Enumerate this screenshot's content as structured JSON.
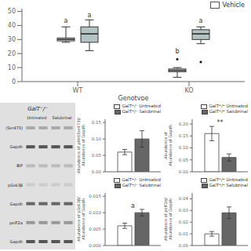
{
  "chart_data": [
    {
      "type": "box",
      "xlabel": "Genotype",
      "categories": [
        "WT",
        "KO"
      ],
      "ylim": [
        0,
        52
      ],
      "yticks": [
        0,
        10,
        20,
        30,
        40,
        50
      ],
      "legend": "upper right",
      "series": [
        {
          "name": "Vehicle",
          "color": "white",
          "values": [
            {
              "median": 30,
              "q1": 29,
              "q3": 31,
              "whislo": 28,
              "whishi": 39
            },
            {
              "median": 8,
              "q1": 7,
              "q3": 9,
              "whislo": 3,
              "whishi": 10
            }
          ],
          "fliers": [
            [],
            [
              16
            ]
          ],
          "annotations": [
            {
              "text": "a",
              "y": 42
            },
            {
              "text": "b",
              "y": 20
            }
          ]
        },
        {
          "color": "#b5c4c2",
          "values": [
            {
              "median": 34,
              "q1": 28,
              "q3": 39,
              "whislo": 22,
              "whishi": 44
            },
            {
              "median": 34,
              "q1": 30,
              "q3": 37,
              "whislo": 27,
              "whishi": 39
            }
          ],
          "fliers": [
            [],
            [
              14
            ]
          ],
          "annotations": [
            {
              "text": "a",
              "y": 46
            },
            {
              "text": "a",
              "y": 42
            }
          ]
        }
      ]
    },
    {
      "type": "blot",
      "title": "GalT⁻/⁻",
      "categories": [
        "Untreated",
        "Salubrinal"
      ],
      "series": [
        {
          "name": "(Ser473)",
          "color": "#aaaaaa"
        },
        {
          "name": "Gapdh",
          "color": "#555555"
        },
        {
          "name": "BiP",
          "color": "#bbbbbb"
        },
        {
          "name": "pGsk3β",
          "color": "#cccccc"
        },
        {
          "name": "Gapdh",
          "color": "#666666"
        },
        {
          "name": "peIF2α",
          "color": "#999999"
        },
        {
          "name": "Gapdh",
          "color": "#555555"
        }
      ]
    },
    {
      "type": "bar",
      "ylabel": "Abundance of pAkt(Ser473)/\nAbundance of Gapdh",
      "ylim": [
        0,
        0.16
      ],
      "yticks": [
        {
          "value": 0,
          "label": "0.00"
        },
        0.05,
        {
          "value": 0.1,
          "label": "0.10"
        },
        0.15
      ],
      "tick_labels": "y",
      "legend": "upper right",
      "series": [
        {
          "name": "GalT⁺/⁻ Untreated",
          "color": "white",
          "values": [
            0.06
          ],
          "errors": [
            0.008
          ]
        },
        {
          "name": "GalT⁺/⁻ Salubrinal",
          "color": "#666666",
          "values": [
            0.1
          ],
          "errors": [
            0.025
          ]
        }
      ]
    },
    {
      "type": "bar",
      "ylabel": "Abundance of\nAbundance of Gapdh",
      "ylim": [
        0,
        0.22
      ],
      "yticks": [
        {
          "value": 0,
          "label": "0.00"
        },
        0.05,
        {
          "value": 0.1,
          "label": "0.10"
        },
        0.15,
        {
          "value": 0.2,
          "label": "0.20"
        }
      ],
      "tick_labels": "y",
      "legend": "upper right",
      "annotations": [
        "**"
      ],
      "series": [
        {
          "name": "GalT⁺/⁺ Untreated",
          "color": "white",
          "values": [
            0.16
          ],
          "errors": [
            0.03
          ]
        },
        {
          "name": "GalT⁺/⁺ Salubrinal",
          "color": "#666666",
          "values": [
            0.06
          ],
          "errors": [
            0.015
          ]
        }
      ]
    },
    {
      "type": "bar",
      "ylabel": "Abundance of pGsk3β/\nAbundance of Gapdh",
      "ylim": [
        0,
        0.016
      ],
      "yticks": [
        {
          "value": 0,
          "label": "0.000"
        },
        0.005,
        {
          "value": 0.01,
          "label": "0.010"
        },
        0.015
      ],
      "tick_labels": "y",
      "legend": "upper right",
      "annotations": [
        "a"
      ],
      "series": [
        {
          "name": "GalT⁺/⁻ Untreated",
          "color": "white",
          "values": [
            0.006
          ],
          "errors": [
            0.0008
          ]
        },
        {
          "name": "GalT⁺/⁻ Salubrinal",
          "color": "#666666",
          "values": [
            0.01
          ],
          "errors": [
            0.001
          ]
        }
      ]
    },
    {
      "type": "bar",
      "ylabel": "Abundance of peIF2α/\nAbundance of Gapdh",
      "ylim": [
        0,
        0.045
      ],
      "yticks": [
        {
          "value": 0,
          "label": "0.00"
        },
        0.01,
        0.02,
        0.03,
        0.04
      ],
      "tick_labels": "y",
      "legend": "upper right",
      "series": [
        {
          "name": "GalT⁺/⁺ Untreated",
          "color": "white",
          "values": [
            0.01
          ],
          "errors": [
            0.002
          ]
        },
        {
          "name": "GalT⁺/⁺ Salubrinal",
          "color": "#666666",
          "values": [
            0.028
          ],
          "errors": [
            0.005
          ]
        }
      ]
    }
  ]
}
